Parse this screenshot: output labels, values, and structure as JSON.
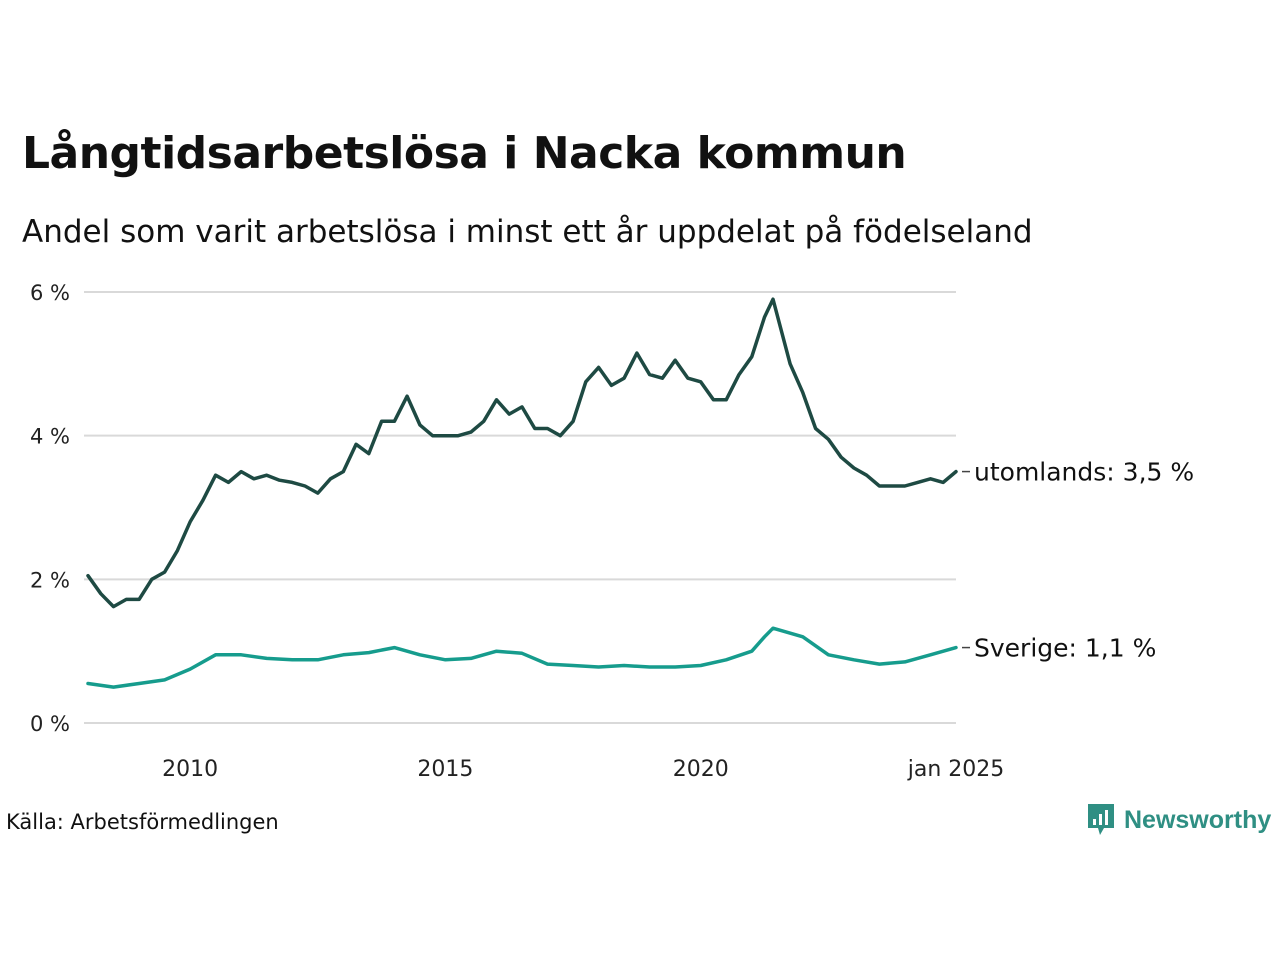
{
  "title": "Långtidsarbetslösa i Nacka kommun",
  "subtitle": "Andel som varit arbetslösa i minst ett år uppdelat på födelseland",
  "source": "Källa: Arbetsförmedlingen",
  "brand": {
    "name": "Newsworthy",
    "color": "#2f8f83"
  },
  "chart_data": {
    "type": "line",
    "title": "Långtidsarbetslösa i Nacka kommun",
    "subtitle": "Andel som varit arbetslösa i minst ett år uppdelat på födelseland",
    "x_range": [
      "2008-01",
      "2025-01"
    ],
    "ylim": [
      0,
      6
    ],
    "y_ticks": [
      0,
      2,
      4,
      6
    ],
    "y_tick_labels": [
      "0 %",
      "2 %",
      "4 %",
      "6 %"
    ],
    "x_ticks": [
      "2010-01",
      "2015-01",
      "2020-01",
      "2025-01"
    ],
    "x_tick_labels": [
      "2010",
      "2015",
      "2020",
      "jan 2025"
    ],
    "grid": "horizontal",
    "series": [
      {
        "name": "utomlands",
        "label": "utomlands: 3,5 %",
        "color": "#1e4a43",
        "points": [
          [
            "2008-01",
            2.05
          ],
          [
            "2008-04",
            1.8
          ],
          [
            "2008-07",
            1.62
          ],
          [
            "2008-10",
            1.72
          ],
          [
            "2009-01",
            1.72
          ],
          [
            "2009-04",
            2.0
          ],
          [
            "2009-07",
            2.1
          ],
          [
            "2009-10",
            2.4
          ],
          [
            "2010-01",
            2.8
          ],
          [
            "2010-04",
            3.1
          ],
          [
            "2010-07",
            3.45
          ],
          [
            "2010-10",
            3.35
          ],
          [
            "2011-01",
            3.5
          ],
          [
            "2011-04",
            3.4
          ],
          [
            "2011-07",
            3.45
          ],
          [
            "2011-10",
            3.38
          ],
          [
            "2012-01",
            3.35
          ],
          [
            "2012-04",
            3.3
          ],
          [
            "2012-07",
            3.2
          ],
          [
            "2012-10",
            3.4
          ],
          [
            "2013-01",
            3.5
          ],
          [
            "2013-04",
            3.88
          ],
          [
            "2013-07",
            3.75
          ],
          [
            "2013-10",
            4.2
          ],
          [
            "2014-01",
            4.2
          ],
          [
            "2014-04",
            4.55
          ],
          [
            "2014-07",
            4.15
          ],
          [
            "2014-10",
            4.0
          ],
          [
            "2015-01",
            4.0
          ],
          [
            "2015-04",
            4.0
          ],
          [
            "2015-07",
            4.05
          ],
          [
            "2015-10",
            4.2
          ],
          [
            "2016-01",
            4.5
          ],
          [
            "2016-04",
            4.3
          ],
          [
            "2016-07",
            4.4
          ],
          [
            "2016-10",
            4.1
          ],
          [
            "2017-01",
            4.1
          ],
          [
            "2017-04",
            4.0
          ],
          [
            "2017-07",
            4.2
          ],
          [
            "2017-10",
            4.75
          ],
          [
            "2018-01",
            4.95
          ],
          [
            "2018-04",
            4.7
          ],
          [
            "2018-07",
            4.8
          ],
          [
            "2018-10",
            5.15
          ],
          [
            "2019-01",
            4.85
          ],
          [
            "2019-04",
            4.8
          ],
          [
            "2019-07",
            5.05
          ],
          [
            "2019-10",
            4.8
          ],
          [
            "2020-01",
            4.75
          ],
          [
            "2020-04",
            4.5
          ],
          [
            "2020-07",
            4.5
          ],
          [
            "2020-10",
            4.85
          ],
          [
            "2021-01",
            5.1
          ],
          [
            "2021-04",
            5.65
          ],
          [
            "2021-06",
            5.9
          ],
          [
            "2021-10",
            5.0
          ],
          [
            "2022-01",
            4.6
          ],
          [
            "2022-04",
            4.1
          ],
          [
            "2022-07",
            3.95
          ],
          [
            "2022-10",
            3.7
          ],
          [
            "2023-01",
            3.55
          ],
          [
            "2023-04",
            3.45
          ],
          [
            "2023-07",
            3.3
          ],
          [
            "2023-10",
            3.3
          ],
          [
            "2024-01",
            3.3
          ],
          [
            "2024-04",
            3.35
          ],
          [
            "2024-07",
            3.4
          ],
          [
            "2024-10",
            3.35
          ],
          [
            "2025-01",
            3.5
          ]
        ]
      },
      {
        "name": "Sverige",
        "label": "Sverige: 1,1 %",
        "color": "#169c8d",
        "points": [
          [
            "2008-01",
            0.55
          ],
          [
            "2008-07",
            0.5
          ],
          [
            "2009-01",
            0.55
          ],
          [
            "2009-07",
            0.6
          ],
          [
            "2010-01",
            0.75
          ],
          [
            "2010-07",
            0.95
          ],
          [
            "2011-01",
            0.95
          ],
          [
            "2011-07",
            0.9
          ],
          [
            "2012-01",
            0.88
          ],
          [
            "2012-07",
            0.88
          ],
          [
            "2013-01",
            0.95
          ],
          [
            "2013-07",
            0.98
          ],
          [
            "2014-01",
            1.05
          ],
          [
            "2014-07",
            0.95
          ],
          [
            "2015-01",
            0.88
          ],
          [
            "2015-07",
            0.9
          ],
          [
            "2016-01",
            1.0
          ],
          [
            "2016-07",
            0.97
          ],
          [
            "2017-01",
            0.82
          ],
          [
            "2017-07",
            0.8
          ],
          [
            "2018-01",
            0.78
          ],
          [
            "2018-07",
            0.8
          ],
          [
            "2019-01",
            0.78
          ],
          [
            "2019-07",
            0.78
          ],
          [
            "2020-01",
            0.8
          ],
          [
            "2020-07",
            0.88
          ],
          [
            "2021-01",
            1.0
          ],
          [
            "2021-04",
            1.2
          ],
          [
            "2021-06",
            1.32
          ],
          [
            "2022-01",
            1.2
          ],
          [
            "2022-07",
            0.95
          ],
          [
            "2023-01",
            0.88
          ],
          [
            "2023-07",
            0.82
          ],
          [
            "2024-01",
            0.85
          ],
          [
            "2024-07",
            0.95
          ],
          [
            "2025-01",
            1.05
          ]
        ]
      }
    ]
  }
}
